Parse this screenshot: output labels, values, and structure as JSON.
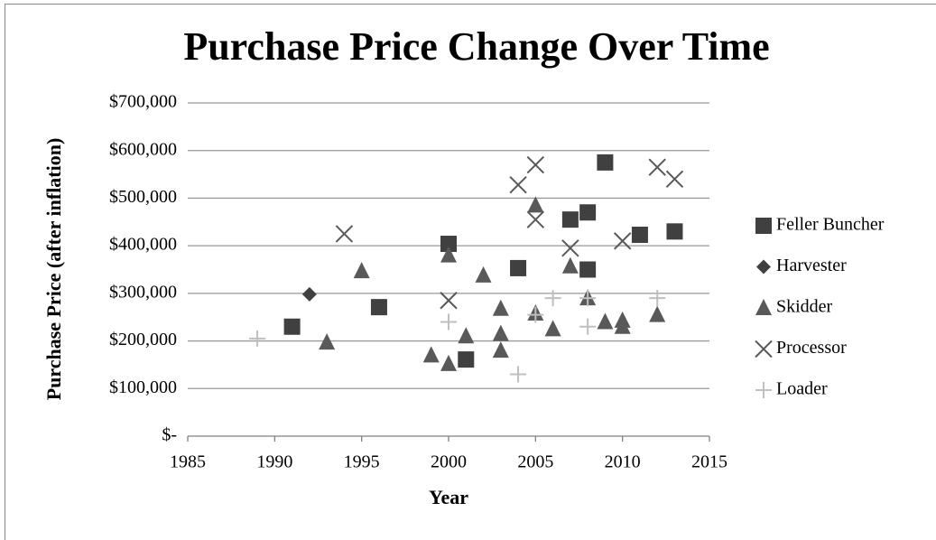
{
  "chart_data": {
    "type": "scatter",
    "title": "Purchase Price Change Over Time",
    "x_label": "Year",
    "y_label": "Purchase Price (after inflation)",
    "xlim": [
      1985,
      2015
    ],
    "xticks": [
      1985,
      1990,
      1995,
      2000,
      2005,
      2010,
      2015
    ],
    "ylim": [
      0,
      700000
    ],
    "yticks": [
      {
        "value": 0,
        "label": "$-"
      },
      {
        "value": 100000,
        "label": "$100,000"
      },
      {
        "value": 200000,
        "label": "$200,000"
      },
      {
        "value": 300000,
        "label": "$300,000"
      },
      {
        "value": 400000,
        "label": "$400,000"
      },
      {
        "value": 500000,
        "label": "$500,000"
      },
      {
        "value": 600000,
        "label": "$600,000"
      },
      {
        "value": 700000,
        "label": "$700,000"
      }
    ],
    "grid": true,
    "legend": "right",
    "series": [
      {
        "name": "Feller Buncher",
        "color": "#404040",
        "marker": "square",
        "x": [
          1991,
          1996,
          2000,
          2001,
          2004,
          2007,
          2008,
          2008,
          2009,
          2011,
          2013
        ],
        "values": [
          230000,
          271000,
          404000,
          161000,
          353000,
          455000,
          470000,
          350000,
          575000,
          423000,
          430000
        ]
      },
      {
        "name": "Harvester",
        "color": "#404040",
        "marker": "diamond",
        "x": [
          1992
        ],
        "values": [
          298000
        ]
      },
      {
        "name": "Skidder",
        "color": "#595959",
        "marker": "triangle",
        "x": [
          1993,
          1995,
          1999,
          2000,
          2000,
          2001,
          2002,
          2003,
          2003,
          2003,
          2005,
          2005,
          2006,
          2007,
          2008,
          2009,
          2010,
          2010,
          2012
        ],
        "values": [
          197000,
          347000,
          170000,
          152000,
          380000,
          210000,
          338000,
          268000,
          215000,
          180000,
          485000,
          258000,
          225000,
          357000,
          290000,
          240000,
          243000,
          230000,
          255000
        ]
      },
      {
        "name": "Processor",
        "color": "#595959",
        "marker": "x",
        "x": [
          1994,
          2000,
          2004,
          2005,
          2005,
          2007,
          2010,
          2012,
          2013
        ],
        "values": [
          425000,
          285000,
          528000,
          570000,
          455000,
          395000,
          410000,
          565000,
          540000
        ]
      },
      {
        "name": "Loader",
        "color": "#bfbfbf",
        "marker": "plus",
        "x": [
          1989,
          2000,
          2004,
          2005,
          2006,
          2008,
          2008,
          2012
        ],
        "values": [
          205000,
          240000,
          130000,
          255000,
          290000,
          230000,
          290000,
          290000
        ]
      }
    ]
  }
}
